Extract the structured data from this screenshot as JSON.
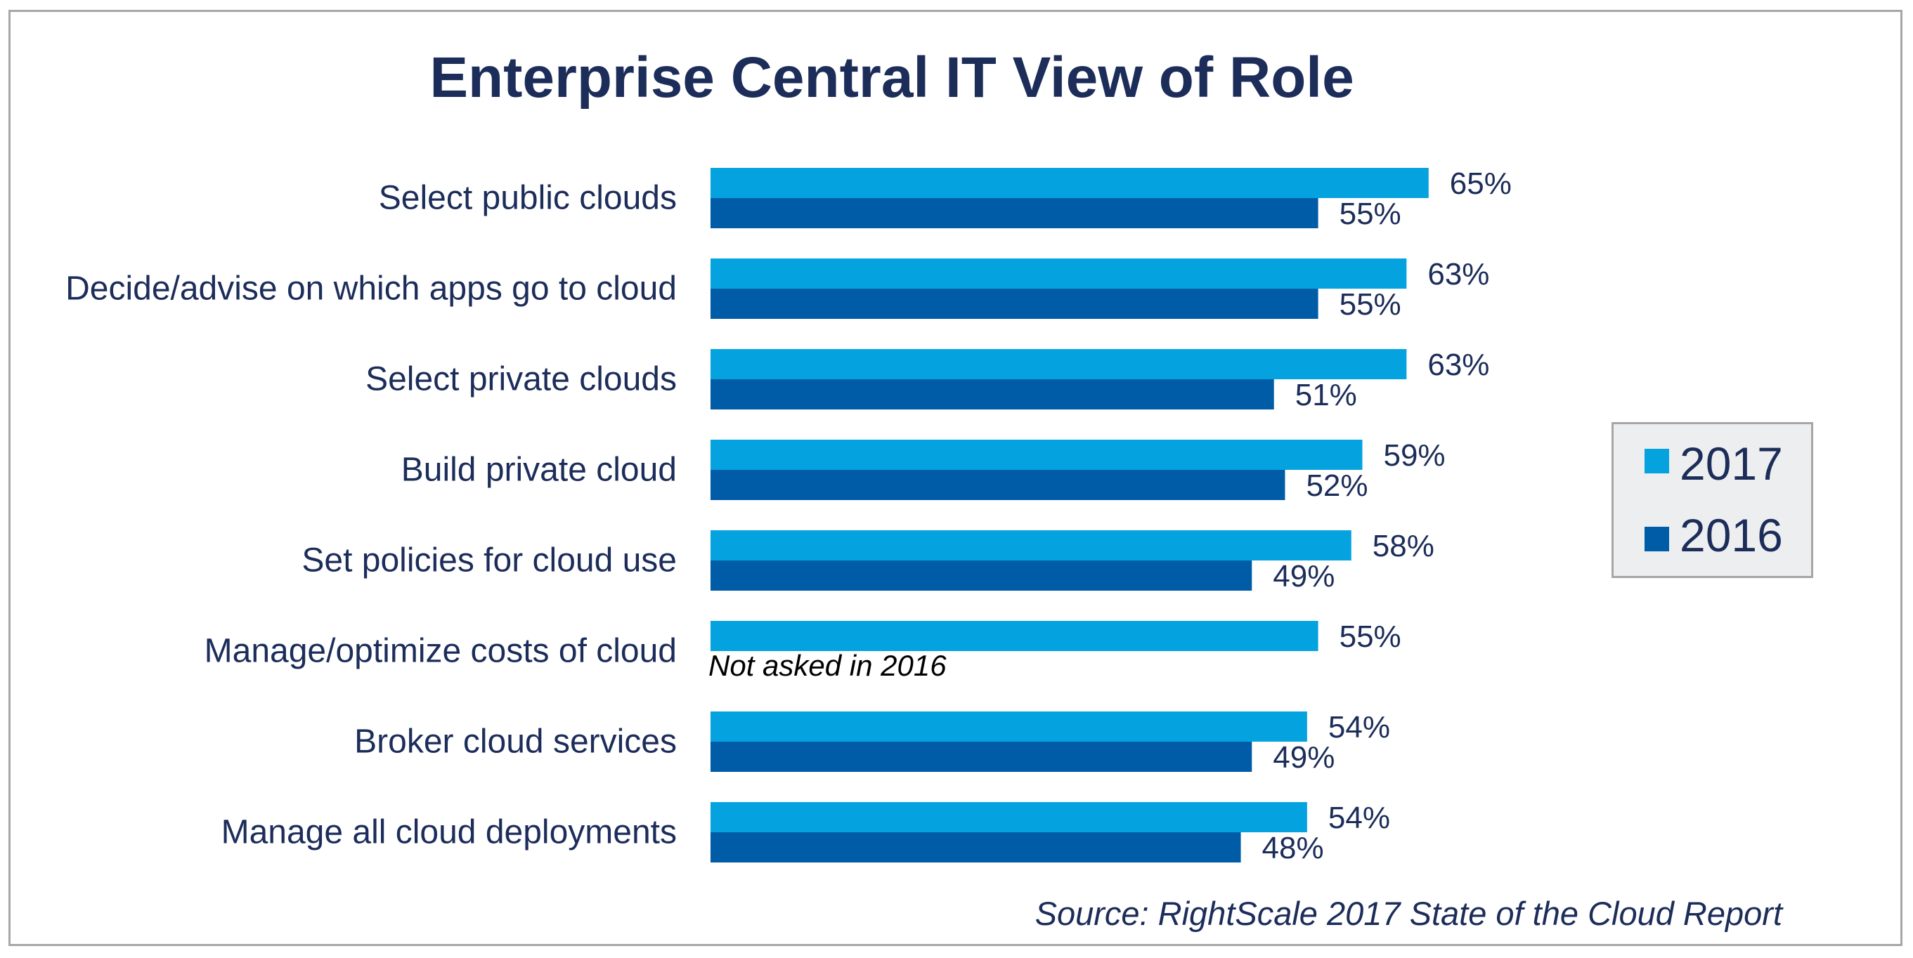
{
  "chart_data": {
    "type": "bar",
    "orientation": "horizontal",
    "title": "Enterprise Central IT View of Role",
    "xlabel": "",
    "ylabel": "",
    "xlim": [
      0,
      100
    ],
    "grid": false,
    "categories": [
      "Select public clouds",
      "Decide/advise on which apps go to cloud",
      "Select private clouds",
      "Build private cloud",
      "Set policies for cloud use",
      "Manage/optimize costs of cloud",
      "Broker cloud services",
      "Manage all cloud deployments"
    ],
    "series": [
      {
        "name": "2017",
        "color": "#04a3e0",
        "values": [
          65,
          63,
          63,
          59,
          58,
          55,
          54,
          54
        ],
        "labels": [
          "65%",
          "63%",
          "63%",
          "59%",
          "58%",
          "55%",
          "54%",
          "54%"
        ]
      },
      {
        "name": "2016",
        "color": "#015ca8",
        "values": [
          55,
          55,
          51,
          52,
          49,
          null,
          49,
          48
        ],
        "labels": [
          "55%",
          "55%",
          "51%",
          "52%",
          "49%",
          null,
          "49%",
          "48%"
        ]
      }
    ],
    "annotations": [
      {
        "category": "Manage/optimize costs of cloud",
        "series": "2016",
        "text": "Not asked in 2016"
      }
    ],
    "legend": {
      "position": "right",
      "entries": [
        "2017",
        "2016"
      ]
    },
    "source": "Source: RightScale 2017 State of the Cloud Report"
  },
  "colors": {
    "text": "#1c2d5a",
    "note": "#000000",
    "frame": "#a7a7aa",
    "legend_bg": "#edeeef"
  }
}
